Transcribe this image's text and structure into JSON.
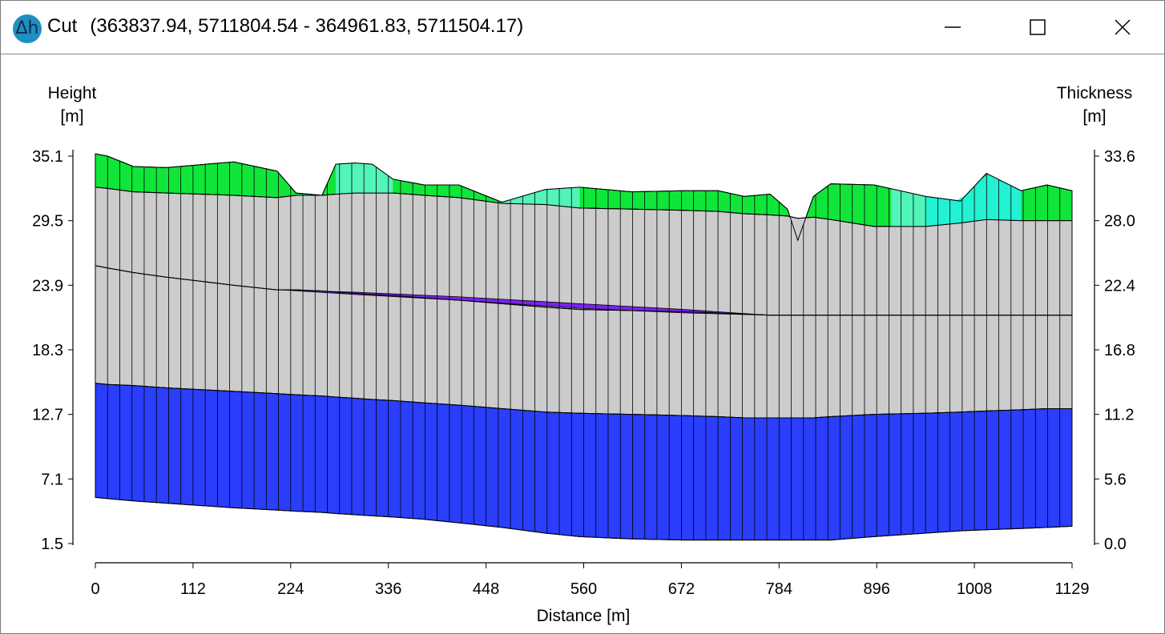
{
  "window": {
    "title_prefix": "Cut",
    "title_coords": "(363837.94, 5711804.54 - 364961.83, 5711504.17)",
    "icon": "delta-h-app-icon",
    "icon_text": "Δh",
    "controls": [
      "minimize-icon",
      "maximize-icon",
      "close-icon"
    ]
  },
  "chart_data": {
    "type": "area",
    "xlabel": "Distance [m]",
    "ylabel_left": [
      "Height",
      "[m]"
    ],
    "ylabel_right": [
      "Thickness",
      "[m]"
    ],
    "xlim": [
      0,
      1129
    ],
    "ylim": [
      1.5,
      35.1
    ],
    "xticks": [
      "0",
      "112",
      "224",
      "336",
      "448",
      "560",
      "672",
      "784",
      "896",
      "1008",
      "1129"
    ],
    "yticks_left": [
      "35.1",
      "29.5",
      "23.9",
      "18.3",
      "12.7",
      "7.1",
      "1.5"
    ],
    "yticks_right": [
      "33.6",
      "28.0",
      "22.4",
      "16.8",
      "11.2",
      "5.6",
      "0.0"
    ],
    "x": [
      0,
      14,
      44,
      82,
      160,
      210,
      232,
      262,
      278,
      300,
      320,
      344,
      380,
      420,
      470,
      520,
      560,
      620,
      680,
      720,
      750,
      780,
      800,
      812,
      830,
      850,
      900,
      960,
      1000,
      1030,
      1070,
      1100,
      1129
    ],
    "series": [
      {
        "color": "#10e63a",
        "values": [
          35.3,
          35.1,
          34.2,
          34.1,
          34.6,
          33.8,
          31.9,
          31.7,
          34.4,
          34.5,
          34.4,
          33.1,
          32.6,
          32.6,
          31.1,
          32.2,
          32.4,
          32.0,
          32.1,
          32.1,
          31.6,
          31.8,
          30.5,
          27.8,
          31.6,
          32.7,
          32.6,
          31.6,
          31.2,
          33.6,
          32.1,
          32.6,
          32.1
        ]
      },
      {
        "color": "#cccccc",
        "values": [
          32.4,
          32.3,
          32.0,
          31.9,
          31.7,
          31.5,
          31.7,
          31.7,
          31.8,
          31.9,
          31.9,
          31.9,
          31.7,
          31.5,
          31.0,
          30.9,
          30.6,
          30.5,
          30.4,
          30.3,
          30.1,
          30.0,
          29.9,
          29.7,
          29.8,
          29.6,
          29.0,
          29.0,
          29.3,
          29.6,
          29.5,
          29.5,
          29.5
        ]
      },
      {
        "color": "#cccccc",
        "values": [
          25.6,
          25.4,
          25.0,
          24.6,
          23.9,
          23.5,
          23.5,
          23.4,
          23.3,
          23.2,
          23.1,
          23.0,
          22.8,
          22.6,
          22.3,
          22.0,
          21.8,
          21.7,
          21.6,
          21.5,
          21.4,
          21.3,
          21.3,
          21.3,
          21.3,
          21.3,
          21.3,
          21.3,
          21.3,
          21.3,
          21.3,
          21.3,
          21.3
        ]
      },
      {
        "color": "#2a3efb",
        "values": [
          15.4,
          15.3,
          15.2,
          15.0,
          14.7,
          14.5,
          14.4,
          14.3,
          14.2,
          14.1,
          14.0,
          13.9,
          13.7,
          13.5,
          13.2,
          12.9,
          12.8,
          12.7,
          12.6,
          12.5,
          12.4,
          12.4,
          12.4,
          12.4,
          12.4,
          12.5,
          12.7,
          12.8,
          12.9,
          13.0,
          13.1,
          13.2,
          13.2
        ]
      },
      {
        "color": "#2a3efb",
        "values": [
          5.5,
          5.4,
          5.2,
          5.0,
          4.6,
          4.4,
          4.3,
          4.2,
          4.1,
          4.0,
          3.9,
          3.8,
          3.6,
          3.3,
          2.9,
          2.4,
          2.1,
          1.9,
          1.8,
          1.8,
          1.8,
          1.8,
          1.8,
          1.8,
          1.8,
          1.8,
          2.1,
          2.4,
          2.6,
          2.7,
          2.8,
          2.9,
          3.0
        ]
      }
    ],
    "overlay_patches": [
      {
        "color": "#52f4b8",
        "x": [
          278,
          344
        ],
        "top": [
          34.4,
          33.1
        ]
      },
      {
        "color": "#52f4b8",
        "x": [
          470,
          560
        ],
        "top": [
          31.1,
          32.4
        ]
      },
      {
        "color": "#52f4b8",
        "x": [
          920,
          1070
        ],
        "top": [
          31.4,
          32.1
        ]
      },
      {
        "color": "#22f2d4",
        "x": [
          960,
          1070
        ],
        "top": [
          31.6,
          32.1
        ]
      }
    ],
    "lens": {
      "color": "#7a22f0",
      "x": [
        215,
        300,
        420,
        560,
        680,
        780
      ],
      "top": [
        23.5,
        23.3,
        22.9,
        22.3,
        21.8,
        21.3
      ],
      "bottom": [
        23.5,
        23.1,
        22.6,
        21.9,
        21.5,
        21.3
      ]
    }
  }
}
